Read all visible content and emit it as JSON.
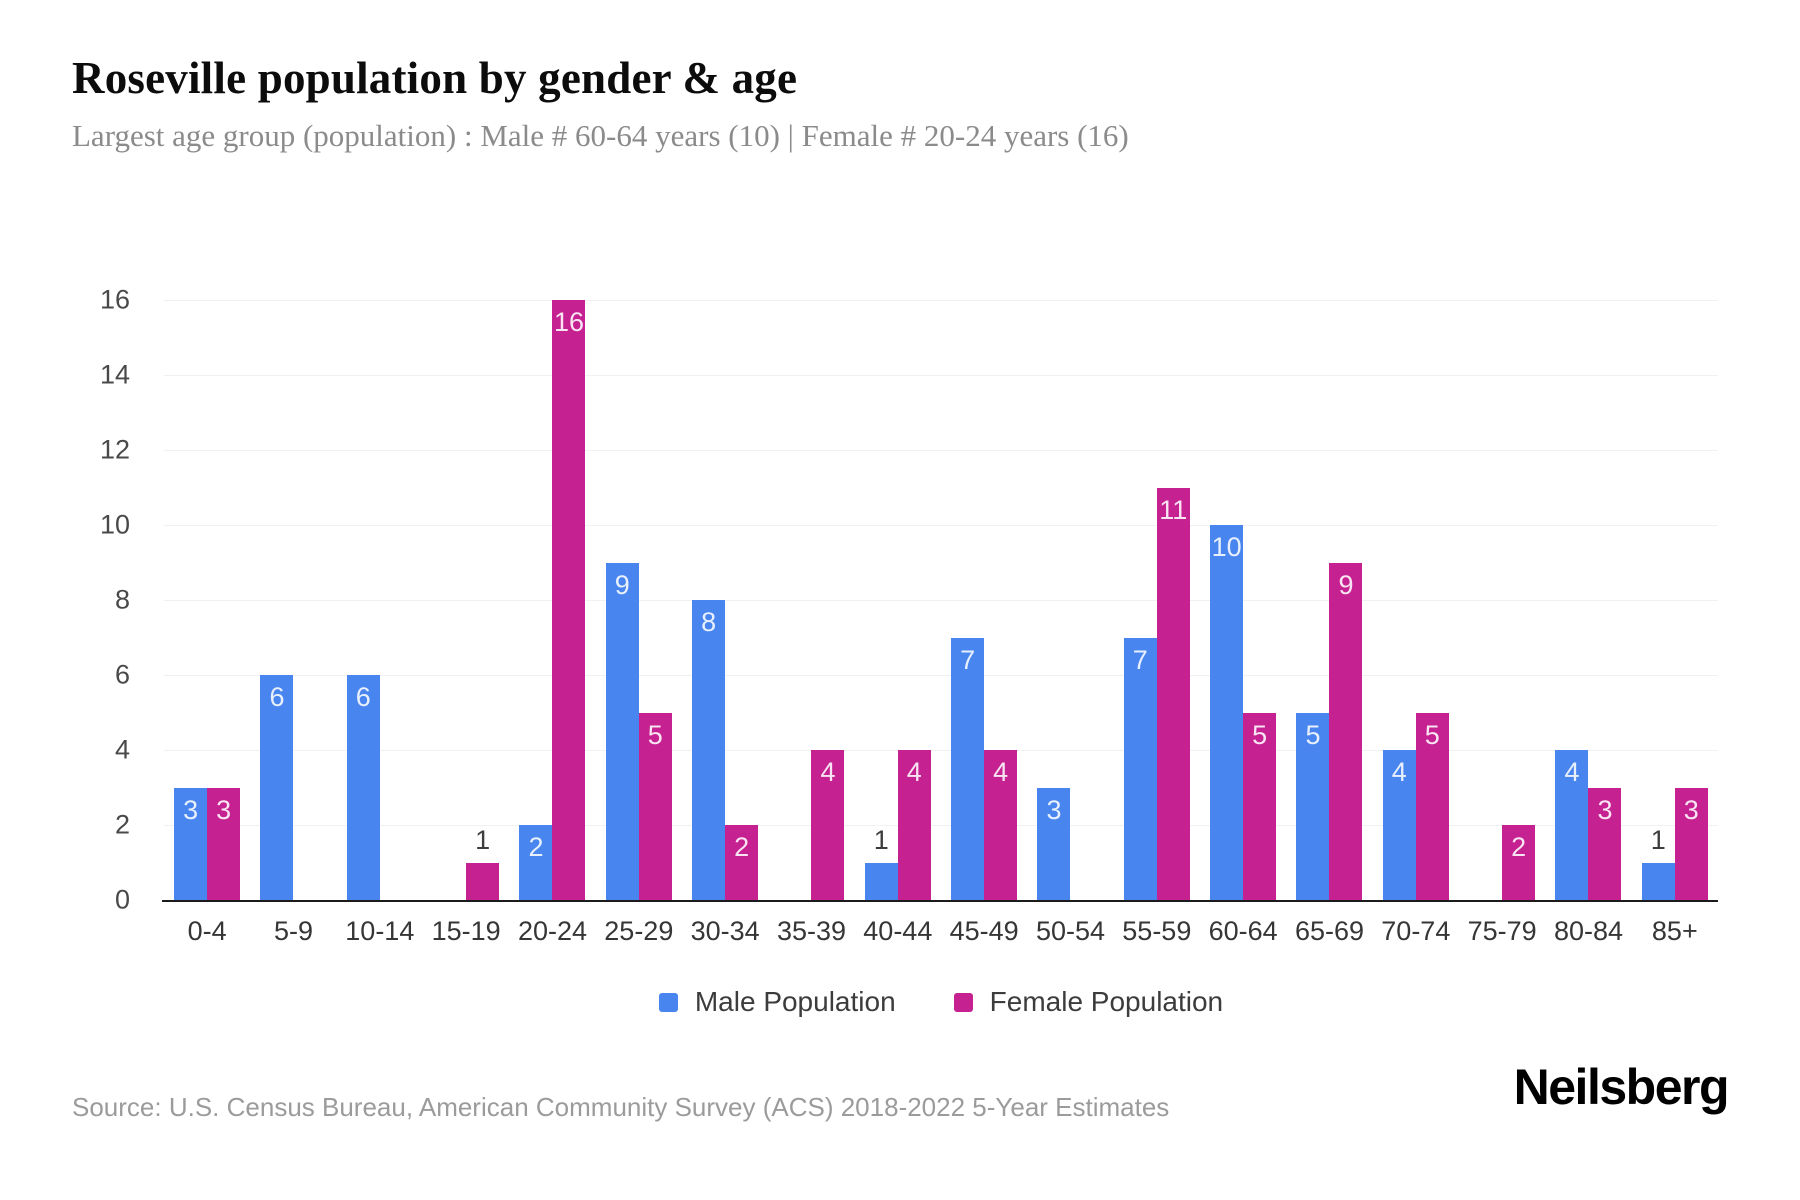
{
  "header": {
    "title": "Roseville population by gender & age",
    "subtitle": "Largest age group (population) : Male # 60-64 years (10) | Female # 20-24 years (16)"
  },
  "chart_data": {
    "type": "bar",
    "title": "Roseville population by gender & age",
    "categories": [
      "0-4",
      "5-9",
      "10-14",
      "15-19",
      "20-24",
      "25-29",
      "30-34",
      "35-39",
      "40-44",
      "45-49",
      "50-54",
      "55-59",
      "60-64",
      "65-69",
      "70-74",
      "75-79",
      "80-84",
      "85+"
    ],
    "series": [
      {
        "name": "Male Population",
        "color": "#4885ef",
        "values": [
          3,
          6,
          6,
          0,
          2,
          9,
          8,
          0,
          1,
          7,
          3,
          7,
          10,
          5,
          4,
          0,
          4,
          1
        ]
      },
      {
        "name": "Female Population",
        "color": "#c62190",
        "values": [
          3,
          0,
          0,
          1,
          16,
          5,
          2,
          4,
          4,
          4,
          0,
          11,
          5,
          9,
          5,
          2,
          3,
          3
        ]
      }
    ],
    "xlabel": "",
    "ylabel": "",
    "ylim": [
      0,
      16
    ],
    "y_ticks": [
      0,
      2,
      4,
      6,
      8,
      10,
      12,
      14,
      16
    ],
    "grid": true,
    "legend_position": "bottom",
    "bar_value_labels": "shown; values >= 2 in white inside bar top, value 1 in dark gray above bar"
  },
  "footer": {
    "source": "Source: U.S. Census Bureau, American Community Survey (ACS) 2018-2022 5-Year Estimates",
    "brand": "Neilsberg"
  }
}
